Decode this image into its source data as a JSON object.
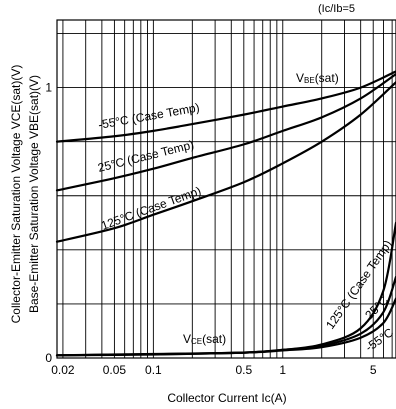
{
  "chart_data": {
    "type": "line",
    "title": "",
    "condition": "(Ic/Ib=5",
    "xlabel": "Collector Current Ic(A)",
    "ylabel": [
      "Collector-Emitter Saturation Voltage VCE(sat)(V)",
      "Base-Emitter Saturation Voltage VBE(sat)(V)"
    ],
    "x_scale": "log",
    "xlim": [
      0.018,
      7.5
    ],
    "ylim": [
      0,
      1.25
    ],
    "x_ticks": [
      {
        "value": 0.02,
        "label": "0.02"
      },
      {
        "value": 0.05,
        "label": "0.05"
      },
      {
        "value": 0.1,
        "label": "0.1"
      },
      {
        "value": 0.5,
        "label": "0.5"
      },
      {
        "value": 1,
        "label": "1"
      },
      {
        "value": 5,
        "label": "5"
      }
    ],
    "y_ticks": [
      {
        "value": 0,
        "label": "0"
      },
      {
        "value": 1,
        "label": "1"
      }
    ],
    "grid": true,
    "series": [
      {
        "name": "VBE(sat) -55°C (Case Temp)",
        "x": [
          0.018,
          0.05,
          0.1,
          0.2,
          0.5,
          1,
          2,
          4,
          7.5
        ],
        "y": [
          0.8,
          0.82,
          0.84,
          0.865,
          0.9,
          0.93,
          0.96,
          1.0,
          1.06
        ]
      },
      {
        "name": "VBE(sat) 25°C (Case Temp)",
        "x": [
          0.018,
          0.05,
          0.1,
          0.2,
          0.5,
          1,
          2,
          4,
          7.5
        ],
        "y": [
          0.62,
          0.665,
          0.7,
          0.74,
          0.79,
          0.84,
          0.89,
          0.96,
          1.05
        ]
      },
      {
        "name": "VBE(sat) 125°C (Case Temp)",
        "x": [
          0.018,
          0.05,
          0.1,
          0.2,
          0.5,
          1,
          2,
          4,
          7.5
        ],
        "y": [
          0.43,
          0.48,
          0.53,
          0.58,
          0.65,
          0.72,
          0.8,
          0.9,
          1.02
        ]
      },
      {
        "name": "VCE(sat) 125°C (Case Temp)",
        "x": [
          0.018,
          0.1,
          0.5,
          1,
          2,
          4,
          6,
          7.5
        ],
        "y": [
          0.01,
          0.015,
          0.02,
          0.03,
          0.05,
          0.11,
          0.25,
          0.5
        ]
      },
      {
        "name": "VCE(sat) 25°C",
        "x": [
          0.018,
          0.1,
          0.5,
          1,
          2,
          4,
          6,
          7.5
        ],
        "y": [
          0.01,
          0.014,
          0.02,
          0.03,
          0.045,
          0.09,
          0.17,
          0.3
        ]
      },
      {
        "name": "VCE(sat) -55°C",
        "x": [
          0.018,
          0.1,
          0.5,
          1,
          2,
          4,
          6,
          7.5
        ],
        "y": [
          0.01,
          0.013,
          0.02,
          0.028,
          0.04,
          0.075,
          0.13,
          0.22
        ]
      }
    ],
    "annotations": [
      {
        "text": "-55°C (Case Temp)"
      },
      {
        "text": "25°C (Case Temp)"
      },
      {
        "text": "125°C (Case Temp)"
      },
      {
        "text": "VBE(sat)"
      },
      {
        "text": "VCE(sat)"
      },
      {
        "text": "125°C (Case Temp)"
      },
      {
        "text": "25°C"
      },
      {
        "text": "-55°C"
      }
    ]
  }
}
